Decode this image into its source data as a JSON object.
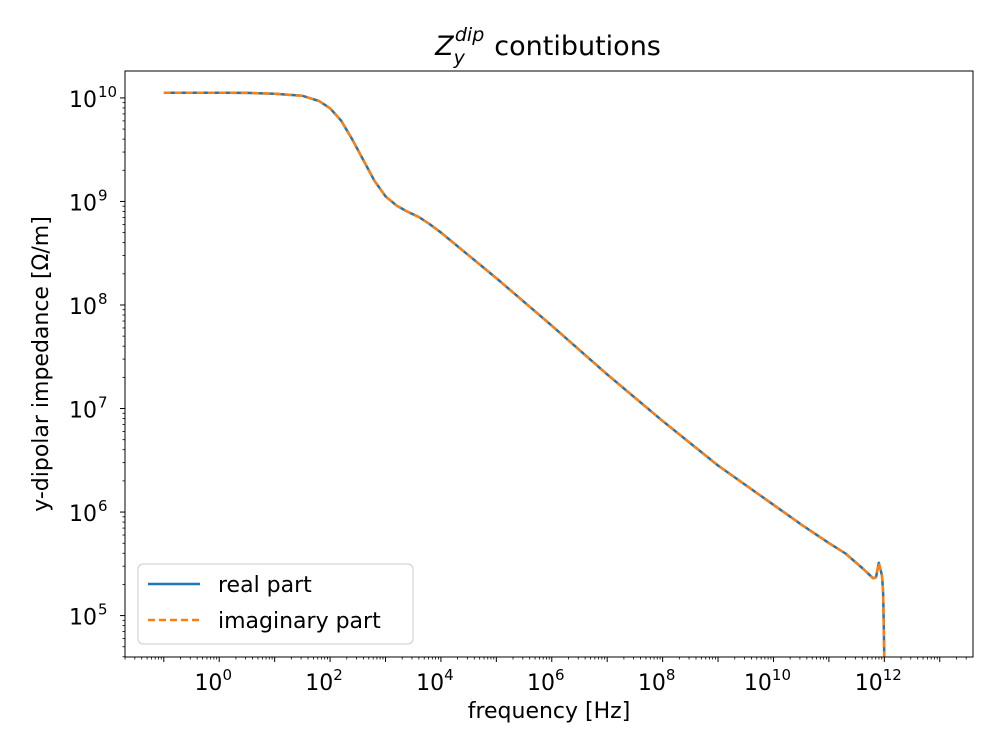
{
  "chart_data": {
    "type": "line",
    "title_math": {
      "base": "Z",
      "sub": "y",
      "sup": "dip"
    },
    "title_text": "contibutions",
    "xlabel": "frequency [Hz]",
    "ylabel": "y-dipolar impedance [Ω/m]",
    "xscale": "log",
    "yscale": "log",
    "xlim_exp": [
      -1.7,
      13.6
    ],
    "ylim_exp": [
      4.6,
      10.26
    ],
    "x_tick_base": "10",
    "x_tick_exps": [
      "0",
      "2",
      "4",
      "6",
      "8",
      "10",
      "12"
    ],
    "y_tick_base": "10",
    "y_tick_exps": [
      "5",
      "6",
      "7",
      "8",
      "9",
      "10"
    ],
    "legend_position": "lower-left",
    "series": [
      {
        "name": "real part",
        "color": "#1f77b4",
        "style": "solid",
        "log10_x": [
          -1,
          0,
          0.5,
          1,
          1.5,
          1.8,
          2,
          2.2,
          2.4,
          2.6,
          2.8,
          3,
          3.2,
          3.4,
          3.6,
          3.8,
          4,
          4.5,
          5,
          6,
          7,
          8,
          9,
          10,
          10.5,
          11,
          11.3,
          11.6,
          11.8,
          11.85,
          11.9,
          11.93,
          11.96,
          11.98,
          12.0
        ],
        "log10_y": [
          10.05,
          10.05,
          10.048,
          10.04,
          10.02,
          9.97,
          9.9,
          9.78,
          9.6,
          9.4,
          9.2,
          9.05,
          8.96,
          8.9,
          8.85,
          8.78,
          8.7,
          8.48,
          8.26,
          7.8,
          7.33,
          6.88,
          6.45,
          6.07,
          5.88,
          5.7,
          5.6,
          5.46,
          5.36,
          5.37,
          5.51,
          5.45,
          5.38,
          5.2,
          4.6
        ]
      },
      {
        "name": "imaginary part",
        "color": "#ff7f0e",
        "style": "dashed",
        "log10_x": [
          -1,
          0,
          0.5,
          1,
          1.5,
          1.8,
          2,
          2.2,
          2.4,
          2.6,
          2.8,
          3,
          3.2,
          3.4,
          3.6,
          3.8,
          4,
          4.5,
          5,
          6,
          7,
          8,
          9,
          10,
          10.5,
          11,
          11.3,
          11.6,
          11.8,
          11.85,
          11.9,
          11.93,
          11.96,
          11.98,
          12.0
        ],
        "log10_y": [
          10.05,
          10.05,
          10.048,
          10.04,
          10.02,
          9.97,
          9.9,
          9.78,
          9.6,
          9.4,
          9.2,
          9.05,
          8.96,
          8.9,
          8.85,
          8.78,
          8.7,
          8.48,
          8.26,
          7.8,
          7.33,
          6.88,
          6.45,
          6.07,
          5.88,
          5.7,
          5.6,
          5.46,
          5.36,
          5.37,
          5.51,
          5.45,
          5.38,
          5.2,
          4.6
        ]
      }
    ]
  }
}
